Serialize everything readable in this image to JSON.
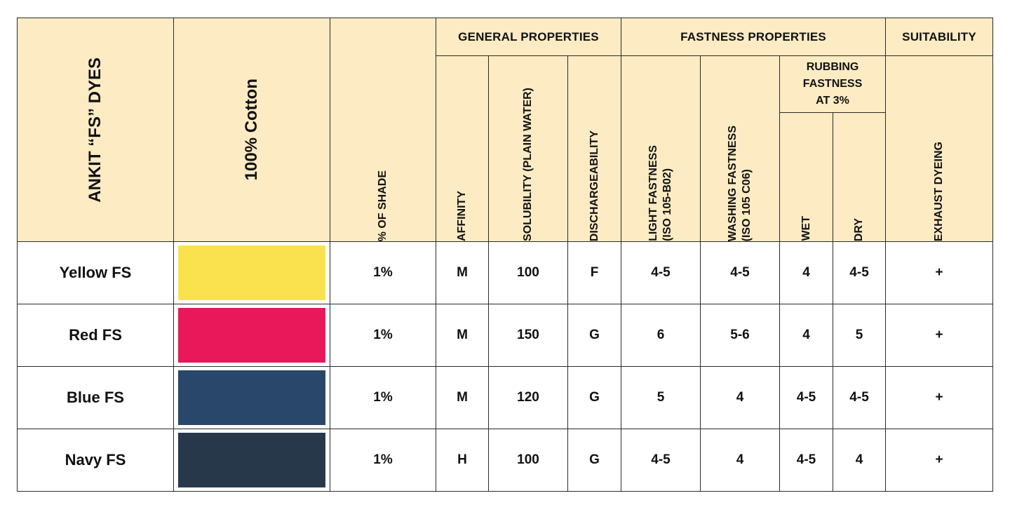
{
  "header": {
    "dyes_label": "ANKIT “FS” DYES",
    "substrate_label": "100% Cotton",
    "shade_label": "% OF SHADE",
    "general_properties": "GENERAL PROPERTIES",
    "fastness_properties": "FASTNESS PROPERTIES",
    "suitability": "SUITABILITY",
    "affinity": "AFFINITY",
    "solubility": "SOLUBILITY (PLAIN WATER)",
    "dischargeability": "DISCHARGEABILITY",
    "light_fastness_1": "LIGHT FASTNESS",
    "light_fastness_2": "(ISO 105-B02)",
    "washing_fastness_1": "WASHING  FASTNESS",
    "washing_fastness_2": "(ISO 105 C06)",
    "rubbing_1": "RUBBING",
    "rubbing_2": "FASTNESS",
    "rubbing_3": "AT 3%",
    "wet": "WET",
    "dry": "DRY",
    "exhaust_dyeing": "EXHAUST DYEING"
  },
  "rows": [
    {
      "name": "Yellow FS",
      "color": "#f9e24e",
      "shade": "1%",
      "affinity": "M",
      "solubility": "100",
      "dischargeability": "F",
      "light": "4-5",
      "washing": "4-5",
      "wet": "4",
      "dry": "4-5",
      "exhaust": "+"
    },
    {
      "name": "Red FS",
      "color": "#e8185a",
      "shade": "1%",
      "affinity": "M",
      "solubility": "150",
      "dischargeability": "G",
      "light": "6",
      "washing": "5-6",
      "wet": "4",
      "dry": "5",
      "exhaust": "+"
    },
    {
      "name": "Blue FS",
      "color": "#29476a",
      "shade": "1%",
      "affinity": "M",
      "solubility": "120",
      "dischargeability": "G",
      "light": "5",
      "washing": "4",
      "wet": "4-5",
      "dry": "4-5",
      "exhaust": "+"
    },
    {
      "name": "Navy FS",
      "color": "#27384b",
      "shade": "1%",
      "affinity": "H",
      "solubility": "100",
      "dischargeability": "G",
      "light": "4-5",
      "washing": "4",
      "wet": "4-5",
      "dry": "4",
      "exhaust": "+"
    }
  ]
}
